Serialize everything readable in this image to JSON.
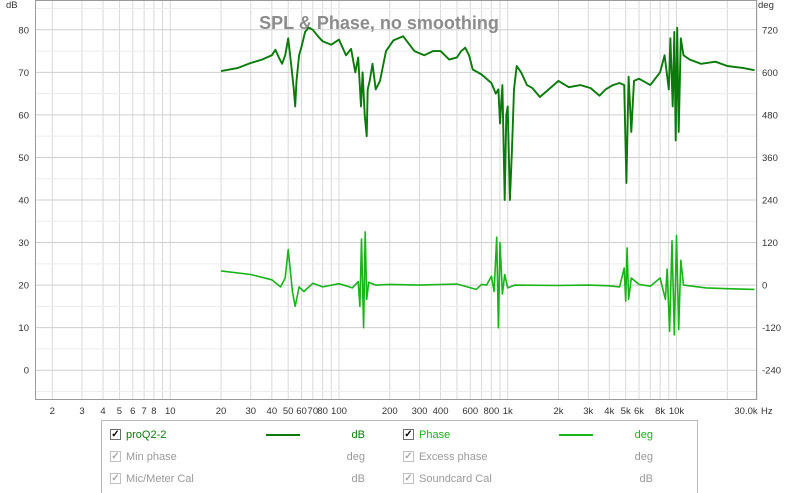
{
  "chart_data": {
    "type": "line",
    "title": "SPL & Phase, no smoothing",
    "left_axis": {
      "unit_label": "dB",
      "ylim": [
        -7,
        87
      ],
      "ticks": [
        {
          "v": 80,
          "t": "80"
        },
        {
          "v": 70,
          "t": "70"
        },
        {
          "v": 60,
          "t": "60"
        },
        {
          "v": 50,
          "t": "50"
        },
        {
          "v": 40,
          "t": "40"
        },
        {
          "v": 30,
          "t": "30"
        },
        {
          "v": 20,
          "t": "20"
        },
        {
          "v": 10,
          "t": "10"
        },
        {
          "v": 0,
          "t": "0"
        }
      ]
    },
    "right_axis": {
      "unit_label": "deg",
      "ticks": [
        {
          "v": 720,
          "t": "720"
        },
        {
          "v": 600,
          "t": "600"
        },
        {
          "v": 480,
          "t": "480"
        },
        {
          "v": 360,
          "t": "360"
        },
        {
          "v": 240,
          "t": "240"
        },
        {
          "v": 120,
          "t": "120"
        },
        {
          "v": 0,
          "t": "0"
        },
        {
          "v": -120,
          "t": "-120"
        },
        {
          "v": -240,
          "t": "-240"
        }
      ]
    },
    "x_axis": {
      "scale": "log",
      "xlim": [
        1.58,
        30000
      ],
      "unit_label": "Hz",
      "ticks": [
        {
          "v": 2,
          "t": "2"
        },
        {
          "v": 3,
          "t": "3"
        },
        {
          "v": 4,
          "t": "4"
        },
        {
          "v": 5,
          "t": "5"
        },
        {
          "v": 6,
          "t": "6"
        },
        {
          "v": 7,
          "t": "7"
        },
        {
          "v": 8,
          "t": "8"
        },
        {
          "v": 10,
          "t": "10"
        },
        {
          "v": 20,
          "t": "20"
        },
        {
          "v": 30,
          "t": "30"
        },
        {
          "v": 40,
          "t": "40"
        },
        {
          "v": 50,
          "t": "50"
        },
        {
          "v": 60,
          "t": "60"
        },
        {
          "v": 70,
          "t": "70"
        },
        {
          "v": 80,
          "t": "80"
        },
        {
          "v": 100,
          "t": "100"
        },
        {
          "v": 200,
          "t": "200"
        },
        {
          "v": 300,
          "t": "300"
        },
        {
          "v": 400,
          "t": "400"
        },
        {
          "v": 600,
          "t": "600"
        },
        {
          "v": 800,
          "t": "800"
        },
        {
          "v": 1000,
          "t": "1k"
        },
        {
          "v": 2000,
          "t": "2k"
        },
        {
          "v": 3000,
          "t": "3k"
        },
        {
          "v": 4000,
          "t": "4k"
        },
        {
          "v": 5000,
          "t": "5k"
        },
        {
          "v": 6000,
          "t": "6k"
        },
        {
          "v": 8000,
          "t": "8k"
        },
        {
          "v": 10000,
          "t": "10k"
        },
        {
          "v": 30000,
          "t": "30.0k"
        }
      ]
    },
    "grid": true,
    "series": [
      {
        "name": "proQ2-2",
        "unit": "dB",
        "color": "#0a7a0a",
        "points": [
          [
            20,
            70.3
          ],
          [
            25,
            71
          ],
          [
            30,
            72.2
          ],
          [
            35,
            73
          ],
          [
            40,
            74
          ],
          [
            42,
            75.3
          ],
          [
            44,
            73.5
          ],
          [
            46,
            72
          ],
          [
            48,
            74
          ],
          [
            50,
            78
          ],
          [
            52,
            72
          ],
          [
            54,
            66
          ],
          [
            55,
            62
          ],
          [
            56,
            68
          ],
          [
            58,
            74
          ],
          [
            60,
            76
          ],
          [
            63,
            79.5
          ],
          [
            66,
            80.5
          ],
          [
            70,
            80
          ],
          [
            75,
            78.5
          ],
          [
            80,
            77.3
          ],
          [
            90,
            76.5
          ],
          [
            100,
            77.7
          ],
          [
            110,
            74
          ],
          [
            118,
            75.5
          ],
          [
            125,
            70
          ],
          [
            130,
            73.5
          ],
          [
            135,
            62
          ],
          [
            138,
            70
          ],
          [
            142,
            60
          ],
          [
            146,
            55
          ],
          [
            148,
            66
          ],
          [
            152,
            68
          ],
          [
            158,
            72
          ],
          [
            165,
            66
          ],
          [
            175,
            68
          ],
          [
            190,
            75
          ],
          [
            210,
            77.5
          ],
          [
            240,
            78.5
          ],
          [
            280,
            75
          ],
          [
            320,
            74
          ],
          [
            360,
            75
          ],
          [
            400,
            75
          ],
          [
            450,
            73
          ],
          [
            500,
            73.5
          ],
          [
            530,
            75
          ],
          [
            560,
            75.8
          ],
          [
            590,
            74
          ],
          [
            620,
            70.7
          ],
          [
            700,
            69.5
          ],
          [
            800,
            67.5
          ],
          [
            850,
            65
          ],
          [
            880,
            66
          ],
          [
            900,
            58
          ],
          [
            930,
            67
          ],
          [
            960,
            40
          ],
          [
            980,
            60
          ],
          [
            1000,
            62
          ],
          [
            1030,
            40
          ],
          [
            1060,
            52
          ],
          [
            1090,
            66
          ],
          [
            1130,
            71.5
          ],
          [
            1200,
            70
          ],
          [
            1300,
            67
          ],
          [
            1400,
            66.3
          ],
          [
            1550,
            64.2
          ],
          [
            1750,
            66
          ],
          [
            2000,
            68
          ],
          [
            2300,
            66.5
          ],
          [
            2700,
            67
          ],
          [
            3100,
            66.3
          ],
          [
            3500,
            64.5
          ],
          [
            3800,
            66
          ],
          [
            4200,
            67
          ],
          [
            4600,
            67.5
          ],
          [
            4900,
            67
          ],
          [
            5050,
            44
          ],
          [
            5200,
            69
          ],
          [
            5400,
            56
          ],
          [
            5600,
            68
          ],
          [
            6000,
            68.5
          ],
          [
            7000,
            67
          ],
          [
            8000,
            70
          ],
          [
            8500,
            74
          ],
          [
            9000,
            66
          ],
          [
            9200,
            78
          ],
          [
            9500,
            62
          ],
          [
            9700,
            79.5
          ],
          [
            9900,
            54
          ],
          [
            10100,
            80.5
          ],
          [
            10300,
            56
          ],
          [
            10600,
            78
          ],
          [
            11000,
            74
          ],
          [
            12000,
            73
          ],
          [
            14000,
            72
          ],
          [
            17000,
            72.5
          ],
          [
            20000,
            71.5
          ],
          [
            25000,
            71
          ],
          [
            29000,
            70.5
          ]
        ]
      },
      {
        "name": "Phase",
        "unit": "deg",
        "color": "#18b418",
        "points": [
          [
            20,
            40
          ],
          [
            30,
            30
          ],
          [
            40,
            15
          ],
          [
            45,
            -5
          ],
          [
            48,
            20
          ],
          [
            50,
            100
          ],
          [
            53,
            -20
          ],
          [
            55,
            -60
          ],
          [
            58,
            -5
          ],
          [
            62,
            -18
          ],
          [
            70,
            5
          ],
          [
            80,
            -5
          ],
          [
            100,
            4
          ],
          [
            110,
            -2
          ],
          [
            120,
            -8
          ],
          [
            130,
            10
          ],
          [
            133,
            -60
          ],
          [
            136,
            130
          ],
          [
            140,
            -120
          ],
          [
            143,
            150
          ],
          [
            146,
            -40
          ],
          [
            150,
            8
          ],
          [
            165,
            0
          ],
          [
            200,
            2
          ],
          [
            300,
            0
          ],
          [
            500,
            3
          ],
          [
            650,
            -12
          ],
          [
            700,
            2
          ],
          [
            750,
            0
          ],
          [
            800,
            25
          ],
          [
            830,
            -18
          ],
          [
            860,
            135
          ],
          [
            880,
            -120
          ],
          [
            900,
            120
          ],
          [
            930,
            -25
          ],
          [
            960,
            30
          ],
          [
            1000,
            -8
          ],
          [
            1100,
            0
          ],
          [
            2000,
            -1
          ],
          [
            3000,
            0
          ],
          [
            4000,
            -2
          ],
          [
            4600,
            -5
          ],
          [
            4900,
            48
          ],
          [
            5000,
            -45
          ],
          [
            5100,
            105
          ],
          [
            5200,
            -40
          ],
          [
            5400,
            20
          ],
          [
            6000,
            2
          ],
          [
            7000,
            -3
          ],
          [
            8000,
            20
          ],
          [
            8600,
            -40
          ],
          [
            8800,
            45
          ],
          [
            9100,
            -130
          ],
          [
            9400,
            125
          ],
          [
            9700,
            -140
          ],
          [
            10000,
            140
          ],
          [
            10300,
            -125
          ],
          [
            10600,
            70
          ],
          [
            11000,
            0
          ],
          [
            15000,
            -8
          ],
          [
            20000,
            -10
          ],
          [
            29000,
            -12
          ]
        ]
      }
    ]
  },
  "legend": {
    "rows": [
      [
        {
          "checked": true,
          "name": "proQ2-2",
          "unit": "dB",
          "enabled": true
        },
        {
          "checked": true,
          "name": "Phase",
          "unit": "deg",
          "enabled": true
        }
      ],
      [
        {
          "checked": true,
          "name": "Min phase",
          "unit": "deg",
          "enabled": false
        },
        {
          "checked": true,
          "name": "Excess phase",
          "unit": "deg",
          "enabled": false
        }
      ],
      [
        {
          "checked": true,
          "name": "Mic/Meter Cal",
          "unit": "dB",
          "enabled": false
        },
        {
          "checked": true,
          "name": "Soundcard Cal",
          "unit": "dB",
          "enabled": false
        }
      ]
    ]
  }
}
